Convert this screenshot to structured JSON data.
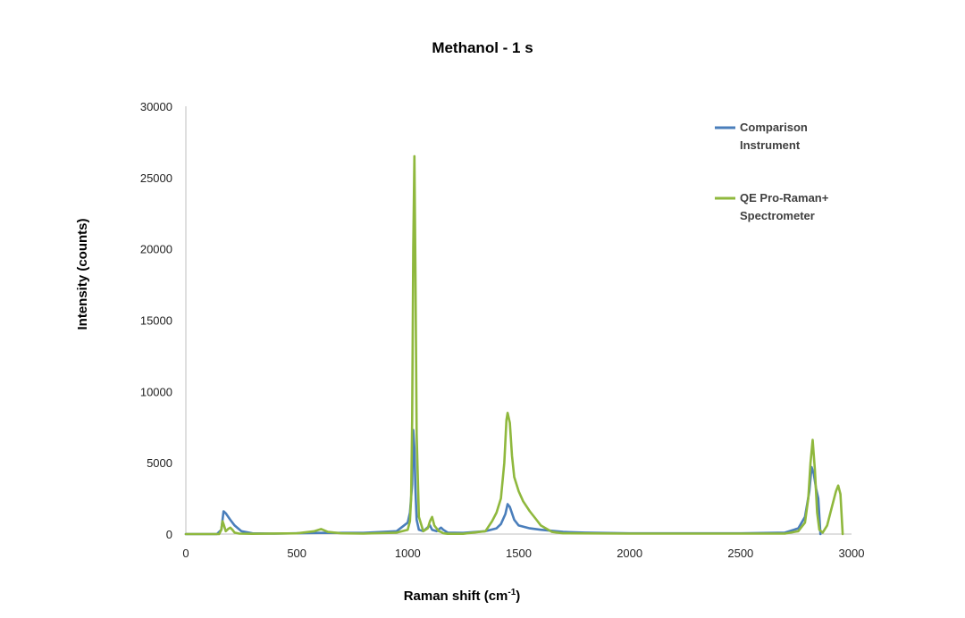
{
  "chart_data": {
    "type": "line",
    "title": "Methanol - 1 s",
    "xlabel": "Raman shift (cm",
    "xlabel_sup": "-1",
    "xlabel_end": ")",
    "ylabel": "Intensity (counts)",
    "xlim": [
      0,
      3000
    ],
    "ylim": [
      0,
      30000
    ],
    "x_ticks": [
      0,
      500,
      1000,
      1500,
      2000,
      2500,
      3000
    ],
    "y_ticks": [
      0,
      5000,
      10000,
      15000,
      20000,
      25000,
      30000
    ],
    "grid": false,
    "legend_position": "top-right",
    "series": [
      {
        "name_lines": [
          "Comparison",
          "Instrument"
        ],
        "color": "#4a7ebb",
        "x": [
          0,
          140,
          160,
          170,
          180,
          200,
          220,
          250,
          300,
          400,
          600,
          800,
          950,
          1000,
          1010,
          1020,
          1025,
          1030,
          1035,
          1040,
          1050,
          1070,
          1100,
          1110,
          1130,
          1150,
          1160,
          1180,
          1250,
          1350,
          1400,
          1420,
          1440,
          1450,
          1460,
          1480,
          1500,
          1550,
          1600,
          1700,
          1800,
          2000,
          2500,
          2700,
          2760,
          2790,
          2810,
          2820,
          2830,
          2840,
          2850,
          2860
        ],
        "y": [
          0,
          0,
          300,
          1600,
          1450,
          1000,
          600,
          200,
          50,
          30,
          80,
          80,
          200,
          800,
          1500,
          3500,
          7300,
          6000,
          3000,
          1000,
          300,
          200,
          600,
          300,
          200,
          450,
          300,
          100,
          80,
          200,
          400,
          700,
          1400,
          2100,
          1900,
          1000,
          600,
          400,
          300,
          150,
          100,
          50,
          50,
          100,
          400,
          1200,
          3000,
          4700,
          4200,
          3200,
          2500,
          0
        ]
      },
      {
        "name_lines": [
          "QE Pro-Raman+",
          "Spectrometer"
        ],
        "color": "#8fb83d",
        "x": [
          0,
          150,
          160,
          165,
          170,
          180,
          190,
          200,
          210,
          220,
          240,
          300,
          500,
          580,
          610,
          640,
          700,
          800,
          950,
          1000,
          1010,
          1015,
          1020,
          1025,
          1030,
          1035,
          1040,
          1050,
          1070,
          1090,
          1100,
          1110,
          1120,
          1140,
          1150,
          1160,
          1180,
          1250,
          1350,
          1380,
          1400,
          1420,
          1435,
          1445,
          1450,
          1460,
          1470,
          1480,
          1500,
          1520,
          1550,
          1580,
          1600,
          1650,
          1700,
          2000,
          2500,
          2700,
          2760,
          2790,
          2805,
          2815,
          2825,
          2835,
          2845,
          2855,
          2870,
          2890,
          2910,
          2930,
          2940,
          2950,
          2960
        ],
        "y": [
          0,
          0,
          300,
          900,
          700,
          200,
          350,
          450,
          300,
          100,
          30,
          20,
          50,
          200,
          350,
          150,
          50,
          30,
          100,
          300,
          900,
          2500,
          8000,
          20000,
          26500,
          18000,
          7000,
          1200,
          200,
          400,
          900,
          1200,
          600,
          200,
          150,
          50,
          20,
          20,
          200,
          900,
          1500,
          2500,
          5000,
          8000,
          8500,
          7800,
          5500,
          4000,
          3000,
          2300,
          1600,
          1000,
          600,
          150,
          50,
          30,
          30,
          30,
          200,
          800,
          2500,
          5000,
          6600,
          4500,
          1500,
          300,
          100,
          600,
          1800,
          3000,
          3400,
          2800,
          0
        ]
      }
    ]
  }
}
